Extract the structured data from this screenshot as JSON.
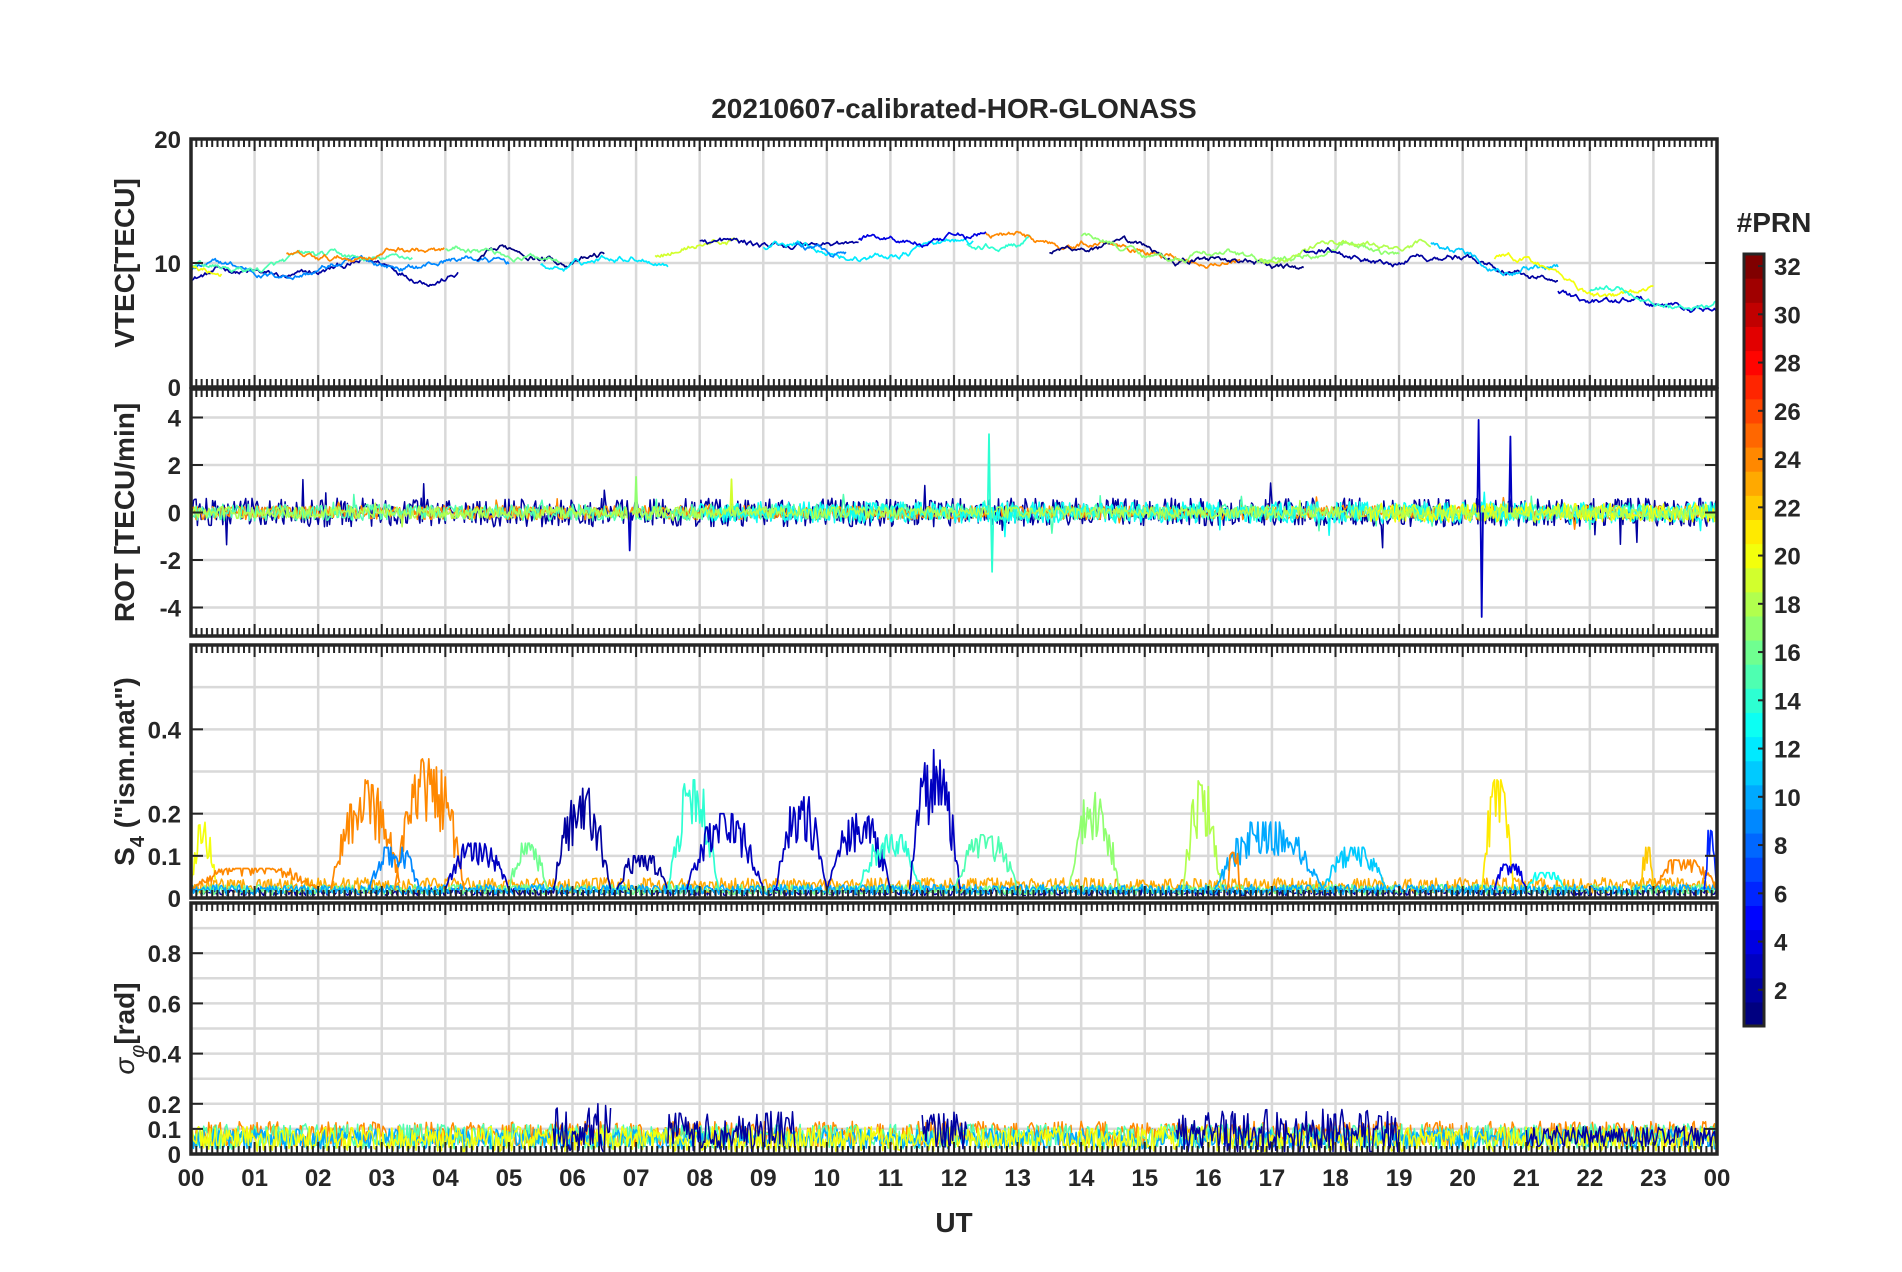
{
  "chart_data": {
    "type": "line",
    "title": "20210607-calibrated-HOR-GLONASS",
    "xlabel": "UT",
    "x_ticks": [
      "00",
      "01",
      "02",
      "03",
      "04",
      "05",
      "06",
      "07",
      "08",
      "09",
      "10",
      "11",
      "12",
      "13",
      "14",
      "15",
      "16",
      "17",
      "18",
      "19",
      "20",
      "21",
      "22",
      "23",
      "00"
    ],
    "xlim": [
      0,
      24
    ],
    "grid": true,
    "colorbar": {
      "label": "#PRN",
      "range": [
        1,
        32
      ],
      "ticks": [
        "2",
        "4",
        "6",
        "8",
        "10",
        "12",
        "14",
        "16",
        "18",
        "20",
        "22",
        "24",
        "26",
        "28",
        "30",
        "32"
      ],
      "colormap": "jet"
    },
    "panels": [
      {
        "id": "vtec",
        "ylabel": "VTEC[TECU]",
        "ylim": [
          0,
          20
        ],
        "y_ticks": [
          0,
          10,
          20
        ],
        "y_tick_labels": [
          "0",
          "10",
          "20"
        ],
        "kind": "smooth",
        "base": [
          [
            0,
            9.5
          ],
          [
            1,
            9.8
          ],
          [
            2,
            9.6
          ],
          [
            3,
            10.2
          ],
          [
            4,
            10.3
          ],
          [
            5,
            10.2
          ],
          [
            6,
            10.6
          ],
          [
            7,
            11
          ],
          [
            8,
            11.5
          ],
          [
            9,
            11.6
          ],
          [
            10,
            11.2
          ],
          [
            11,
            11.3
          ],
          [
            12,
            11.5
          ],
          [
            13,
            11.6
          ],
          [
            14,
            11.6
          ],
          [
            15,
            11.1
          ],
          [
            16,
            10.6
          ],
          [
            17,
            10.1
          ],
          [
            18,
            10.8
          ],
          [
            19,
            10.6
          ],
          [
            20,
            10.5
          ],
          [
            21,
            9.5
          ],
          [
            22,
            7.6
          ],
          [
            23,
            6.8
          ],
          [
            24,
            7.2
          ]
        ],
        "series": [
          {
            "prn": 2,
            "start": 0.0,
            "end": 4.2
          },
          {
            "prn": 9,
            "start": 0.0,
            "end": 5.0
          },
          {
            "prn": 15,
            "start": 0.0,
            "end": 3.5
          },
          {
            "prn": 20,
            "start": 0.0,
            "end": 0.5
          },
          {
            "prn": 24,
            "start": 1.5,
            "end": 4.0
          },
          {
            "prn": 1,
            "start": 4.5,
            "end": 6.5
          },
          {
            "prn": 12,
            "start": 5.5,
            "end": 7.5
          },
          {
            "prn": 16,
            "start": 4.0,
            "end": 5.8
          },
          {
            "prn": 19,
            "start": 7.3,
            "end": 8.6
          },
          {
            "prn": 2,
            "start": 8.0,
            "end": 10.5
          },
          {
            "prn": 12,
            "start": 9.0,
            "end": 12.3
          },
          {
            "prn": 14,
            "start": 12.2,
            "end": 13.2
          },
          {
            "prn": 9,
            "start": 9.5,
            "end": 10.3
          },
          {
            "prn": 4,
            "start": 10.5,
            "end": 12.5
          },
          {
            "prn": 24,
            "start": 12.5,
            "end": 16.5
          },
          {
            "prn": 1,
            "start": 13.5,
            "end": 17.5
          },
          {
            "prn": 17,
            "start": 14.0,
            "end": 19.0
          },
          {
            "prn": 18,
            "start": 16.8,
            "end": 19.5
          },
          {
            "prn": 2,
            "start": 17.5,
            "end": 21.5
          },
          {
            "prn": 11,
            "start": 19.5,
            "end": 21.5
          },
          {
            "prn": 20,
            "start": 20.5,
            "end": 23.0
          },
          {
            "prn": 3,
            "start": 21.5,
            "end": 24.0
          },
          {
            "prn": 14,
            "start": 22.0,
            "end": 24.0
          }
        ]
      },
      {
        "id": "rot",
        "ylabel": "ROT [TECU/min]",
        "ylim": [
          -5.2,
          5.2
        ],
        "y_ticks": [
          -4,
          -2,
          0,
          2,
          4
        ],
        "y_tick_labels": [
          "-4",
          "-2",
          "0",
          "2",
          "4"
        ],
        "kind": "noise",
        "series": [
          {
            "prn": 2,
            "start": 0.0,
            "end": 24.0,
            "amp": 0.6
          },
          {
            "prn": 24,
            "start": 0.0,
            "end": 24.0,
            "amp": 0.3
          },
          {
            "prn": 15,
            "start": 0.0,
            "end": 24.0,
            "amp": 0.35
          },
          {
            "prn": 13,
            "start": 8.0,
            "end": 24.0,
            "amp": 0.45
          },
          {
            "prn": 20,
            "start": 18.5,
            "end": 24.0,
            "amp": 0.4
          },
          {
            "prn": 18,
            "start": 0.0,
            "end": 24.0,
            "amp": 0.25
          }
        ],
        "spikes": [
          {
            "prn": 3,
            "x": 20.25,
            "y": 3.9
          },
          {
            "prn": 3,
            "x": 20.3,
            "y": -4.4
          },
          {
            "prn": 3,
            "x": 20.75,
            "y": 3.2
          },
          {
            "prn": 3,
            "x": 6.9,
            "y": -1.6
          },
          {
            "prn": 14,
            "x": 12.55,
            "y": 3.3
          },
          {
            "prn": 14,
            "x": 12.6,
            "y": -2.5
          },
          {
            "prn": 19,
            "x": 8.5,
            "y": 1.4
          },
          {
            "prn": 17,
            "x": 7.0,
            "y": 1.5
          }
        ]
      },
      {
        "id": "s4",
        "ylabel": "S4 (\"ism.mat\")",
        "ylim": [
          0,
          0.6
        ],
        "y_ticks": [
          0,
          0.1,
          0.2,
          0.4
        ],
        "y_tick_labels": [
          "0",
          "0.1",
          "0.2",
          "0.4"
        ],
        "grid_ticks": [
          0.1,
          0.2,
          0.3,
          0.4,
          0.5
        ],
        "kind": "bursts",
        "background": [
          {
            "prn": 2,
            "level": 0.015
          },
          {
            "prn": 23,
            "level": 0.03
          },
          {
            "prn": 16,
            "level": 0.02
          },
          {
            "prn": 10,
            "level": 0.02
          }
        ],
        "bursts": [
          {
            "prn": 20,
            "start": 0.0,
            "end": 0.4,
            "peak": 0.18
          },
          {
            "prn": 24,
            "start": 0.0,
            "end": 2.0,
            "peak": 0.07
          },
          {
            "prn": 24,
            "start": 2.2,
            "end": 3.3,
            "peak": 0.28
          },
          {
            "prn": 24,
            "start": 3.2,
            "end": 4.3,
            "peak": 0.33
          },
          {
            "prn": 9,
            "start": 2.8,
            "end": 3.6,
            "peak": 0.12
          },
          {
            "prn": 3,
            "start": 4.0,
            "end": 5.0,
            "peak": 0.13
          },
          {
            "prn": 16,
            "start": 5.0,
            "end": 5.6,
            "peak": 0.13
          },
          {
            "prn": 2,
            "start": 5.7,
            "end": 6.6,
            "peak": 0.26
          },
          {
            "prn": 2,
            "start": 6.7,
            "end": 7.5,
            "peak": 0.1
          },
          {
            "prn": 14,
            "start": 7.5,
            "end": 8.3,
            "peak": 0.28
          },
          {
            "prn": 3,
            "start": 7.8,
            "end": 9.0,
            "peak": 0.2
          },
          {
            "prn": 3,
            "start": 9.2,
            "end": 10.0,
            "peak": 0.24
          },
          {
            "prn": 3,
            "start": 10.0,
            "end": 11.0,
            "peak": 0.2
          },
          {
            "prn": 14,
            "start": 10.5,
            "end": 11.5,
            "peak": 0.15
          },
          {
            "prn": 3,
            "start": 11.3,
            "end": 12.1,
            "peak": 0.36
          },
          {
            "prn": 15,
            "start": 12.0,
            "end": 13.0,
            "peak": 0.15
          },
          {
            "prn": 17,
            "start": 13.8,
            "end": 14.6,
            "peak": 0.25
          },
          {
            "prn": 18,
            "start": 15.6,
            "end": 16.2,
            "peak": 0.28
          },
          {
            "prn": 10,
            "start": 16.1,
            "end": 17.8,
            "peak": 0.18
          },
          {
            "prn": 24,
            "start": 16.3,
            "end": 16.5,
            "peak": 0.13
          },
          {
            "prn": 11,
            "start": 17.8,
            "end": 18.8,
            "peak": 0.12
          },
          {
            "prn": 21,
            "start": 20.3,
            "end": 20.8,
            "peak": 0.28
          },
          {
            "prn": 4,
            "start": 20.5,
            "end": 21.0,
            "peak": 0.08
          },
          {
            "prn": 13,
            "start": 21.0,
            "end": 21.6,
            "peak": 0.06
          },
          {
            "prn": 22,
            "start": 22.8,
            "end": 23.0,
            "peak": 0.12
          },
          {
            "prn": 24,
            "start": 23.0,
            "end": 24.0,
            "peak": 0.09
          },
          {
            "prn": 6,
            "start": 23.8,
            "end": 24.0,
            "peak": 0.16
          }
        ]
      },
      {
        "id": "sigma",
        "ylabel": "σφ[rad]",
        "ylim": [
          0,
          1.0
        ],
        "y_ticks": [
          0,
          0.1,
          0.2,
          0.4,
          0.6,
          0.8
        ],
        "y_tick_labels": [
          "0",
          "0.1",
          "0.2",
          "0.4",
          "0.6",
          "0.8"
        ],
        "grid_ticks": [
          0.1,
          0.2,
          0.3,
          0.4,
          0.5,
          0.6,
          0.7,
          0.8,
          0.9
        ],
        "kind": "noise-positive",
        "series": [
          {
            "prn": 24,
            "start": 0.0,
            "end": 24.0,
            "base": 0.08,
            "amp": 0.05
          },
          {
            "prn": 15,
            "start": 0.0,
            "end": 24.0,
            "base": 0.07,
            "amp": 0.05
          },
          {
            "prn": 10,
            "start": 0.0,
            "end": 24.0,
            "base": 0.06,
            "amp": 0.04
          },
          {
            "prn": 20,
            "start": 0.0,
            "end": 24.0,
            "base": 0.06,
            "amp": 0.05
          },
          {
            "prn": 2,
            "start": 5.7,
            "end": 6.6,
            "base": 0.1,
            "amp": 0.1
          },
          {
            "prn": 2,
            "start": 7.5,
            "end": 9.5,
            "base": 0.09,
            "amp": 0.08
          },
          {
            "prn": 2,
            "start": 11.5,
            "end": 12.2,
            "base": 0.1,
            "amp": 0.08
          },
          {
            "prn": 2,
            "start": 15.5,
            "end": 19.0,
            "base": 0.09,
            "amp": 0.09
          },
          {
            "prn": 2,
            "start": 21.0,
            "end": 24.0,
            "base": 0.07,
            "amp": 0.04
          }
        ]
      }
    ]
  }
}
